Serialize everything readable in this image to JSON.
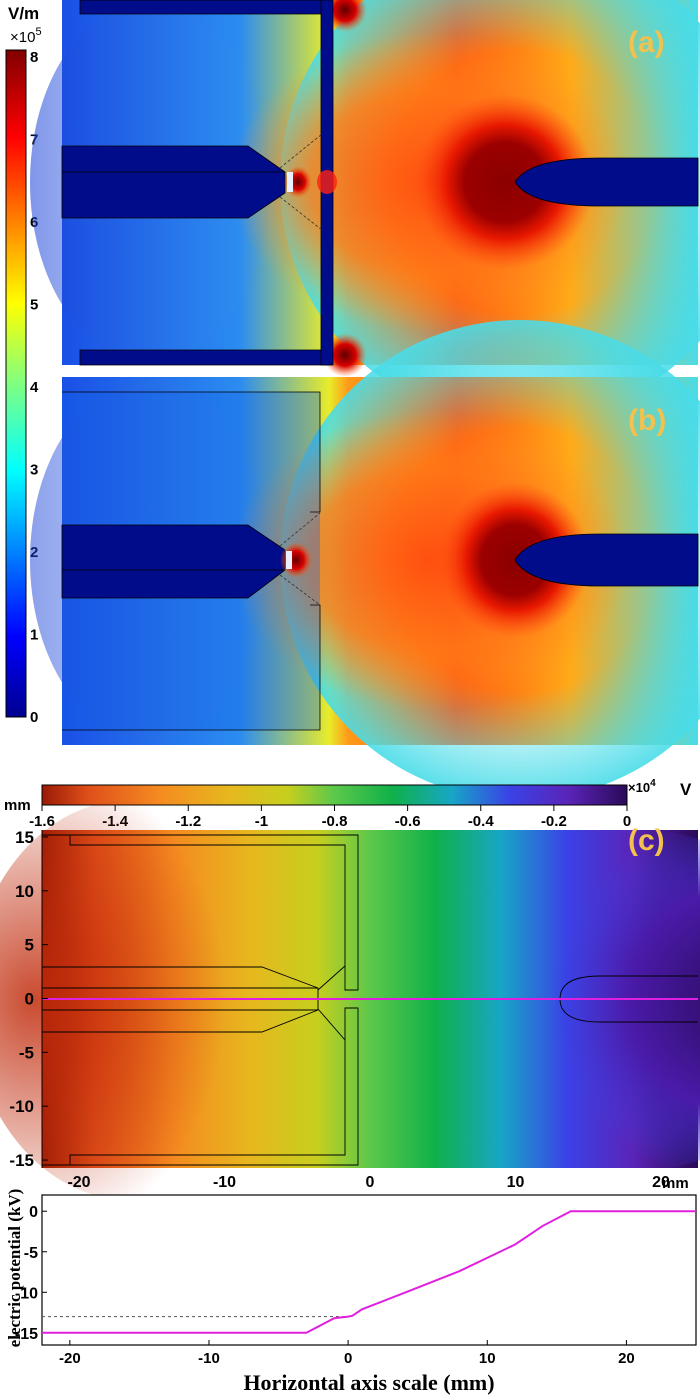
{
  "colorbar_field": {
    "unit": "V/m",
    "multiplier_base": "×10",
    "multiplier_exp": "5",
    "ticks": [
      "8",
      "7",
      "6",
      "5",
      "4",
      "3",
      "2",
      "1",
      "0"
    ],
    "range": [
      0,
      8
    ]
  },
  "panel_a": {
    "label": "(a)"
  },
  "panel_b": {
    "label": "(b)"
  },
  "panel_c": {
    "label": "(c)",
    "axis_unit_y": "mm",
    "axis_unit_x": "mm",
    "yticks": [
      "15",
      "10",
      "5",
      "0",
      "-5",
      "-10",
      "-15"
    ],
    "xticks": [
      "-20",
      "-10",
      "0",
      "10",
      "20"
    ]
  },
  "colorbar_potential": {
    "ticks": [
      "-1.6",
      "-1.4",
      "-1.2",
      "-1",
      "-0.8",
      "-0.6",
      "-0.4",
      "-0.2",
      "0"
    ],
    "multiplier_base": "×10",
    "multiplier_exp": "4",
    "unit": "V",
    "range": [
      -1.6,
      0
    ]
  },
  "chart_data": {
    "type": "line",
    "title": "",
    "xlabel": "Horizontal axis scale (mm)",
    "ylabel": "electric potential (kV)",
    "xlim": [
      -22,
      25
    ],
    "ylim": [
      -16.5,
      2
    ],
    "xticks": [
      "-20",
      "-10",
      "0",
      "10",
      "20"
    ],
    "yticks": [
      "0",
      "-5",
      "-10",
      "-15"
    ],
    "x_unit_label": "mm",
    "series": [
      {
        "color": "#e020e0",
        "x": [
          -22,
          -3,
          -1,
          0,
          0.3,
          1,
          4,
          8,
          12,
          14,
          16,
          20,
          25
        ],
        "y": [
          -15,
          -15,
          -13.2,
          -13,
          -12.9,
          -12.1,
          -10.1,
          -7.4,
          -4.1,
          -1.8,
          0,
          0,
          0
        ]
      }
    ],
    "reference_line": {
      "y": -13,
      "style": "dashed"
    }
  }
}
